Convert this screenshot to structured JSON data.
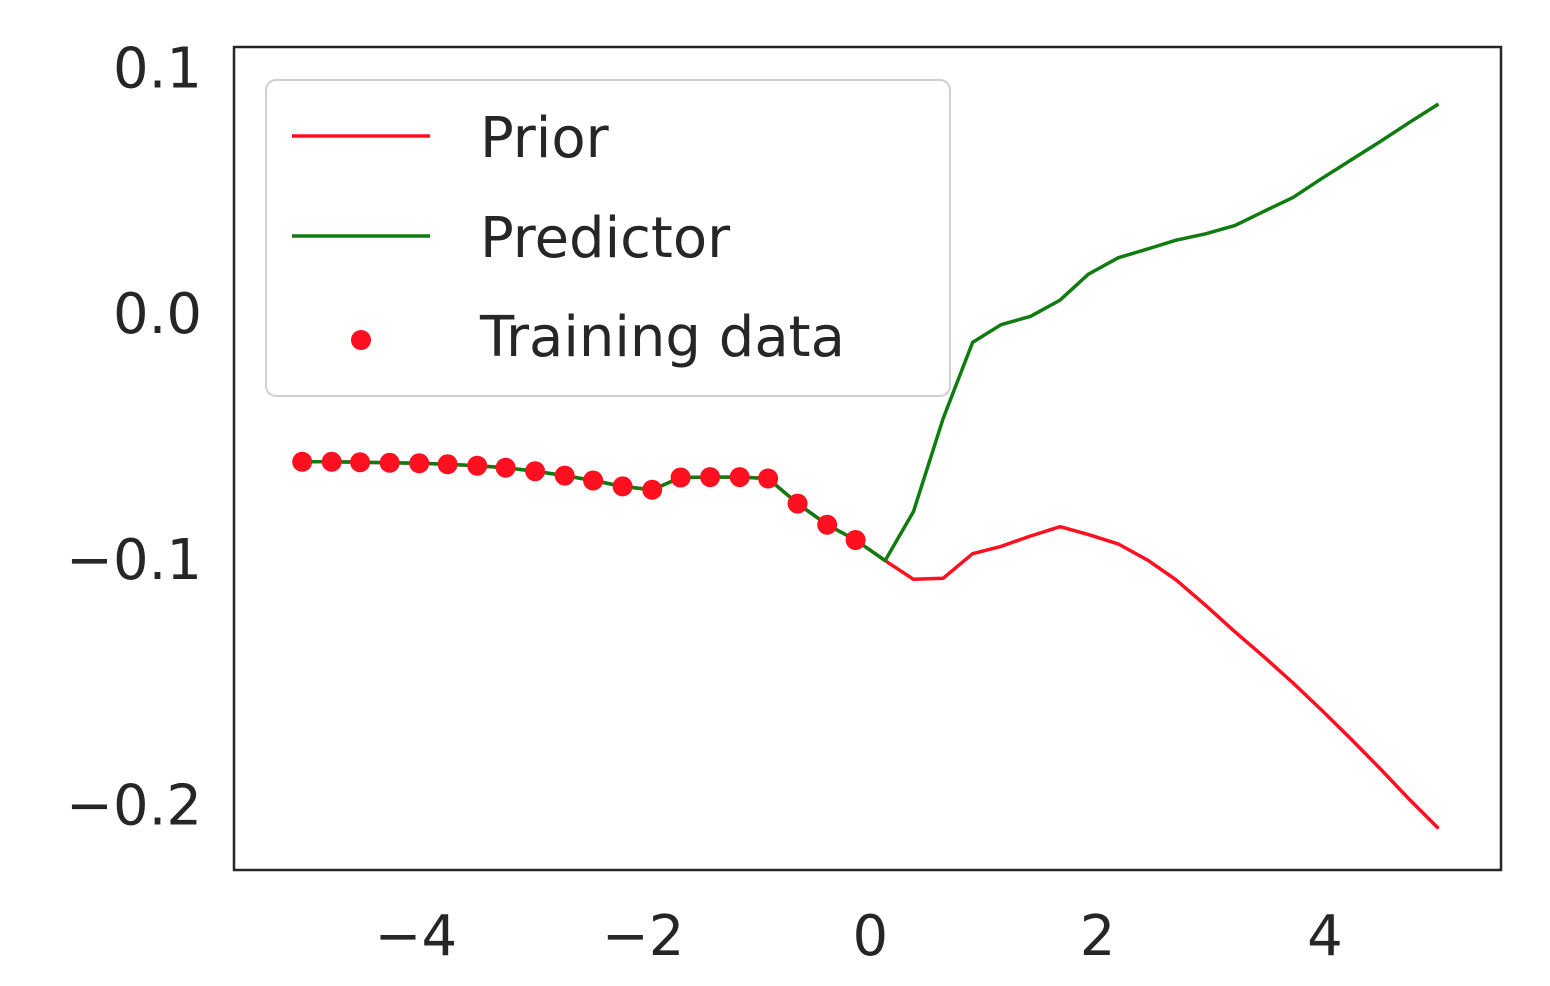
{
  "chart_data": {
    "type": "line",
    "title": "",
    "xlabel": "",
    "ylabel": "",
    "xlim": [
      -5.6,
      5.55
    ],
    "ylim": [
      -0.2266,
      0.1083
    ],
    "grid": false,
    "legend_placement": "top-left",
    "x_ticks": [
      {
        "value": -4,
        "label": "−4"
      },
      {
        "value": -2,
        "label": "−2"
      },
      {
        "value": 0,
        "label": "0"
      },
      {
        "value": 2,
        "label": "2"
      },
      {
        "value": 4,
        "label": "4"
      }
    ],
    "y_ticks": [
      {
        "value": 0.1,
        "label": "0.1"
      },
      {
        "value": 0.0,
        "label": "0.0"
      },
      {
        "value": -0.1,
        "label": "−0.1"
      },
      {
        "value": -0.2,
        "label": "−0.2"
      }
    ],
    "series": [
      {
        "name": "Prior",
        "kind": "line",
        "color": "#ff1020",
        "x": [
          -5.0,
          -4.74,
          -4.49,
          -4.23,
          -3.97,
          -3.72,
          -3.46,
          -3.21,
          -2.95,
          -2.69,
          -2.44,
          -2.18,
          -1.92,
          -1.67,
          -1.41,
          -1.15,
          -0.9,
          -0.64,
          -0.38,
          -0.13,
          0.13,
          0.38,
          0.64,
          0.9,
          1.15,
          1.41,
          1.67,
          1.92,
          2.18,
          2.44,
          2.69,
          2.95,
          3.21,
          3.46,
          3.72,
          3.97,
          4.23,
          4.49,
          4.74,
          5.0
        ],
        "y": [
          -0.0605,
          -0.0605,
          -0.0607,
          -0.0609,
          -0.0611,
          -0.0615,
          -0.0621,
          -0.0629,
          -0.0643,
          -0.0661,
          -0.0681,
          -0.0705,
          -0.0719,
          -0.0669,
          -0.0667,
          -0.0667,
          -0.0673,
          -0.0775,
          -0.0861,
          -0.0923,
          -0.1007,
          -0.1083,
          -0.1079,
          -0.0979,
          -0.0949,
          -0.0907,
          -0.0869,
          -0.0901,
          -0.0939,
          -0.1005,
          -0.1085,
          -0.1189,
          -0.1297,
          -0.1397,
          -0.1505,
          -0.1615,
          -0.1733,
          -0.1855,
          -0.1977,
          -0.2097
        ]
      },
      {
        "name": "Predictor",
        "kind": "line",
        "color": "#107c10",
        "x": [
          -5.0,
          -4.74,
          -4.49,
          -4.23,
          -3.97,
          -3.72,
          -3.46,
          -3.21,
          -2.95,
          -2.69,
          -2.44,
          -2.18,
          -1.92,
          -1.67,
          -1.41,
          -1.15,
          -0.9,
          -0.64,
          -0.38,
          -0.13,
          0.13,
          0.38,
          0.64,
          0.9,
          1.15,
          1.41,
          1.67,
          1.92,
          2.18,
          2.44,
          2.69,
          2.95,
          3.21,
          3.46,
          3.72,
          3.97,
          4.23,
          4.49,
          4.74,
          5.0
        ],
        "y": [
          -0.0605,
          -0.0605,
          -0.0607,
          -0.0609,
          -0.0611,
          -0.0615,
          -0.0621,
          -0.0629,
          -0.0643,
          -0.0661,
          -0.0681,
          -0.0705,
          -0.0719,
          -0.0669,
          -0.0667,
          -0.0667,
          -0.0673,
          -0.0775,
          -0.0861,
          -0.0923,
          -0.1007,
          -0.0807,
          -0.0429,
          -0.0119,
          -0.0047,
          -0.0013,
          0.0053,
          0.0159,
          0.0225,
          0.0261,
          0.0297,
          0.0323,
          0.0357,
          0.0413,
          0.0471,
          0.0547,
          0.0623,
          0.0699,
          0.0775,
          0.0851
        ]
      },
      {
        "name": "Training data",
        "kind": "scatter",
        "color": "#ff1020",
        "x": [
          -5.0,
          -4.74,
          -4.49,
          -4.23,
          -3.97,
          -3.72,
          -3.46,
          -3.21,
          -2.95,
          -2.69,
          -2.44,
          -2.18,
          -1.92,
          -1.67,
          -1.41,
          -1.15,
          -0.9,
          -0.64,
          -0.38,
          -0.13
        ],
        "y": [
          -0.0605,
          -0.0605,
          -0.0607,
          -0.0609,
          -0.0611,
          -0.0615,
          -0.0621,
          -0.0629,
          -0.0643,
          -0.0661,
          -0.0681,
          -0.0705,
          -0.0719,
          -0.0669,
          -0.0667,
          -0.0667,
          -0.0673,
          -0.0775,
          -0.0861,
          -0.0923
        ]
      }
    ]
  }
}
